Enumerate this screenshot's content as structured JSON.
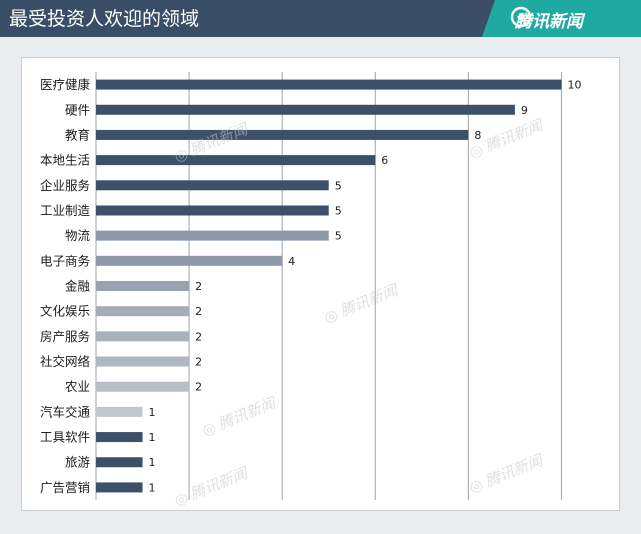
{
  "header": {
    "title": "最受投资人欢迎的领域",
    "logo_text": "腾讯新闻",
    "logo_icon": "tencent-news-logo-icon",
    "bg_color": "#3a4d66",
    "accent_color": "#1fa9a0"
  },
  "watermark": {
    "text": "腾讯新闻"
  },
  "chart_data": {
    "type": "bar",
    "orientation": "horizontal",
    "categories": [
      "医疗健康",
      "硬件",
      "教育",
      "本地生活",
      "企业服务",
      "工业制造",
      "物流",
      "电子商务",
      "金融",
      "文化娱乐",
      "房产服务",
      "社交网络",
      "农业",
      "汽车交通",
      "工具软件",
      "旅游",
      "广告营销"
    ],
    "values": [
      10,
      9,
      8,
      6,
      5,
      5,
      5,
      4,
      2,
      2,
      2,
      2,
      2,
      1,
      1,
      1,
      1
    ],
    "colors": [
      "#3d506a",
      "#3d506a",
      "#3d506a",
      "#3d506a",
      "#3d506a",
      "#3d506a",
      "#8d99aa",
      "#8d99aa",
      "#9aa3ad",
      "#a4adb6",
      "#a9b1ba",
      "#afb7bf",
      "#b7bec5",
      "#c1c7cd",
      "#3d506a",
      "#3d506a",
      "#3d506a"
    ],
    "xlim": [
      0,
      11
    ],
    "grid": true,
    "data_labels": true
  }
}
